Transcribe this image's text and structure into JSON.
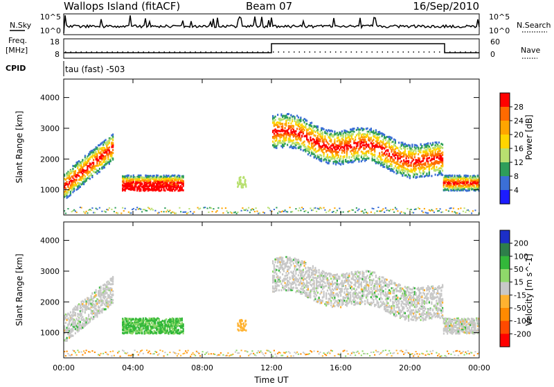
{
  "header": {
    "station": "Wallops Island (fitACF)",
    "beam": "Beam 07",
    "date": "16/Sep/2010"
  },
  "sky_panel": {
    "left_label": "N.Sky",
    "ticks": [
      "10^5",
      "10^0"
    ],
    "right_ticks": [
      "10^5",
      "10^0"
    ],
    "right_label": "N.Search"
  },
  "freq_panel": {
    "left_label_1": "Freq.",
    "left_label_2": "[MHz]",
    "left_ticks": [
      "18",
      "8"
    ],
    "right_ticks": [
      "60",
      "0"
    ],
    "right_label": "Nave"
  },
  "cpid": {
    "label": "CPID",
    "value": "tau (fast) -503"
  },
  "chart_data": [
    {
      "type": "heatmap",
      "name": "power",
      "ylabel": "Slant Range [km]",
      "yticks": [
        1000,
        2000,
        3000,
        4000
      ],
      "ylim": [
        180,
        4600
      ],
      "xlim": [
        0,
        24
      ],
      "colorbar": {
        "label": "Power [dB]",
        "ticks": [
          "28",
          "24",
          "20",
          "16",
          "12",
          "8",
          "4"
        ],
        "colors": [
          "#ff0000",
          "#ff6a00",
          "#ffa500",
          "#ffd500",
          "#b8e070",
          "#2e9e5a",
          "#3b6fd6",
          "#1c1cff"
        ]
      }
    },
    {
      "type": "heatmap",
      "name": "velocity",
      "ylabel": "Slant Range [km]",
      "yticks": [
        1000,
        2000,
        3000,
        4000
      ],
      "ylim": [
        180,
        4600
      ],
      "xlim": [
        0,
        24
      ],
      "xlabel": "Time UT",
      "xticks": [
        "00:00",
        "04:00",
        "08:00",
        "12:00",
        "16:00",
        "20:00",
        "00:00"
      ],
      "colorbar": {
        "label": "Velocity [m s^-1]",
        "ticks": [
          "200",
          "100",
          "50",
          "15",
          "-15",
          "-50",
          "-100",
          "-200"
        ],
        "colors": [
          "#1c2fc8",
          "#2e7f4a",
          "#33b83a",
          "#8fd86a",
          "#c8c8c8",
          "#ffb230",
          "#ff8a00",
          "#ff4a00",
          "#ff0000"
        ]
      }
    }
  ]
}
